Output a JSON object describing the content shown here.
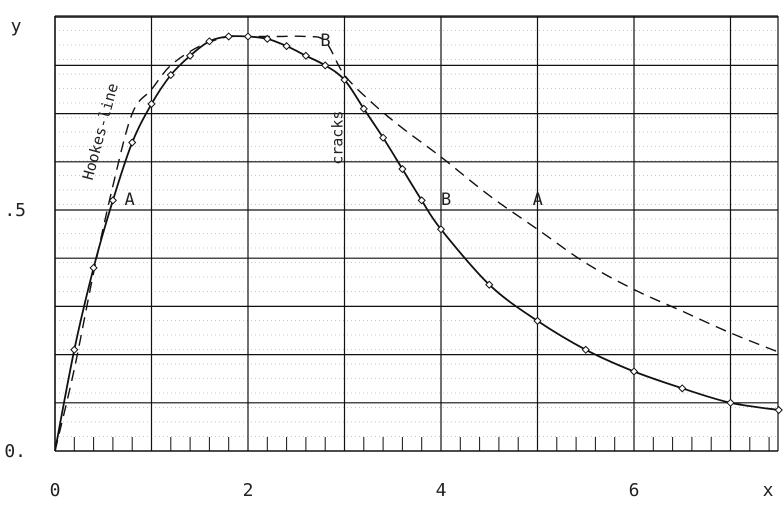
{
  "chart_data": {
    "type": "line",
    "axis_labels": {
      "x": "x",
      "y": "y"
    },
    "x_ticks": [
      {
        "value": 0,
        "label": "0"
      },
      {
        "value": 2,
        "label": "2"
      },
      {
        "value": 4,
        "label": "4"
      },
      {
        "value": 6,
        "label": "6"
      }
    ],
    "y_ticks": [
      {
        "value": 0,
        "label": "0."
      },
      {
        "value": 0.5,
        "label": ".5"
      }
    ],
    "xlim": [
      0,
      7.5
    ],
    "ylim": [
      0,
      0.86
    ],
    "grid": true,
    "series": [
      {
        "label": "A",
        "style": "dashed",
        "x": [
          0.0,
          0.2,
          0.4,
          0.6,
          0.8,
          1.0,
          1.2,
          1.5,
          1.8,
          2.0,
          2.3,
          2.6,
          2.8,
          3.0,
          3.3,
          3.6,
          4.0,
          4.5,
          5.0,
          5.5,
          6.0,
          6.5,
          7.0,
          7.5
        ],
        "y": [
          0.0,
          0.17,
          0.37,
          0.55,
          0.7,
          0.75,
          0.8,
          0.84,
          0.86,
          0.86,
          0.86,
          0.86,
          0.85,
          0.78,
          0.72,
          0.67,
          0.61,
          0.53,
          0.46,
          0.39,
          0.335,
          0.29,
          0.245,
          0.205
        ]
      },
      {
        "label": "B",
        "style": "solid-with-markers",
        "x": [
          0.0,
          0.2,
          0.4,
          0.6,
          0.8,
          1.0,
          1.2,
          1.4,
          1.6,
          1.8,
          2.0,
          2.2,
          2.4,
          2.6,
          2.8,
          3.0,
          3.2,
          3.4,
          3.6,
          3.8,
          4.0,
          4.5,
          5.0,
          5.5,
          6.0,
          6.5,
          7.0,
          7.5
        ],
        "y": [
          0.0,
          0.21,
          0.38,
          0.52,
          0.64,
          0.72,
          0.78,
          0.82,
          0.85,
          0.86,
          0.86,
          0.855,
          0.84,
          0.82,
          0.8,
          0.77,
          0.71,
          0.65,
          0.585,
          0.52,
          0.46,
          0.345,
          0.27,
          0.21,
          0.165,
          0.13,
          0.1,
          0.085
        ]
      }
    ],
    "annotations": [
      {
        "text": "A",
        "x": 0.72,
        "y": 0.51,
        "rotation": 0
      },
      {
        "text": "A",
        "x": 4.95,
        "y": 0.51,
        "rotation": 0
      },
      {
        "text": "B",
        "x": 4.0,
        "y": 0.51,
        "rotation": 0
      },
      {
        "text": "B",
        "x": 2.75,
        "y": 0.84,
        "rotation": 0
      },
      {
        "text": "Hookes-line",
        "x": 0.52,
        "y": 0.66,
        "rotation": -75
      },
      {
        "text": "cracks",
        "x": 2.98,
        "y": 0.65,
        "rotation": -90
      }
    ]
  }
}
